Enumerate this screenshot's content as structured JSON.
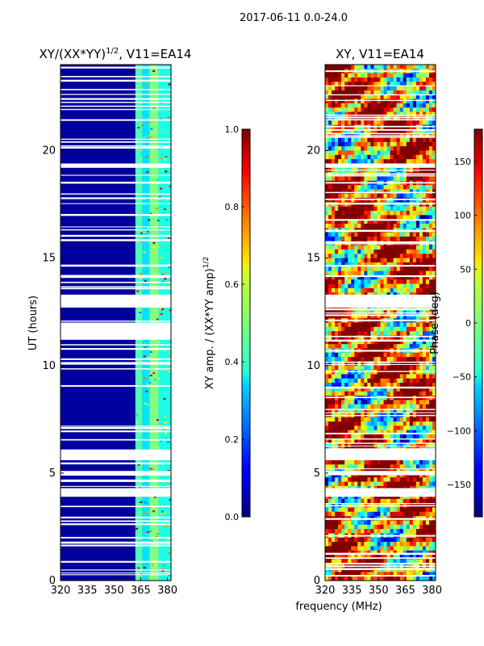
{
  "figure": {
    "suptitle": "2017-06-11 0.0-24.0",
    "xlabel_shared": "frequency (MHz)"
  },
  "chart_data": [
    {
      "type": "heatmap",
      "title_main": "XY/(XX*YY)",
      "title_sup": "1/2",
      "title_tail": ", V11=EA14",
      "ylabel": "UT (hours)",
      "xlim": [
        320,
        382
      ],
      "ylim": [
        0,
        24
      ],
      "xticks": [
        "320",
        "335",
        "350",
        "365",
        "380"
      ],
      "xtick_values": [
        320,
        335,
        350,
        365,
        380
      ],
      "yticks": [
        "0",
        "5",
        "10",
        "15",
        "20"
      ],
      "ytick_values": [
        0,
        5,
        10,
        15,
        20
      ],
      "colorbar": {
        "label_main": "XY amp. / (XX*YY amp)",
        "label_sup": "1/2",
        "range": [
          0.0,
          1.0
        ],
        "ticks": [
          "0.0",
          "0.2",
          "0.4",
          "0.6",
          "0.8",
          "1.0"
        ],
        "tick_values": [
          0.0,
          0.2,
          0.4,
          0.6,
          0.8,
          1.0
        ]
      },
      "flagged_hours": [
        [
          3.9,
          4.3
        ],
        [
          4.9,
          5.1
        ],
        [
          5.6,
          6.1
        ],
        [
          11.2,
          12.0
        ],
        [
          12.7,
          13.3
        ],
        [
          19.2,
          19.4
        ]
      ],
      "band_levels": [
        {
          "from": 320,
          "to": 362,
          "value": 0.04
        },
        {
          "from": 362,
          "to": 366,
          "value": 0.45
        },
        {
          "from": 366,
          "to": 370,
          "value": 0.35
        },
        {
          "from": 370,
          "to": 375,
          "value": 0.5
        },
        {
          "from": 375,
          "to": 382,
          "value": 0.4
        }
      ]
    },
    {
      "type": "heatmap",
      "title_main": "XY, V11=EA14",
      "xlim": [
        320,
        382
      ],
      "ylim": [
        0,
        24
      ],
      "xticks": [
        "320",
        "335",
        "350",
        "365",
        "380"
      ],
      "xtick_values": [
        320,
        335,
        350,
        365,
        380
      ],
      "yticks": [
        "0",
        "5",
        "10",
        "15",
        "20"
      ],
      "ytick_values": [
        0,
        5,
        10,
        15,
        20
      ],
      "colorbar": {
        "label_main": "Phase (deg)",
        "range": [
          -180,
          180
        ],
        "ticks": [
          "150",
          "100",
          "50",
          "0",
          "−50",
          "−100",
          "−150"
        ],
        "tick_values": [
          150,
          100,
          50,
          0,
          -50,
          -100,
          -150
        ]
      },
      "flagged_hours": [
        [
          3.9,
          4.3
        ],
        [
          4.9,
          5.1
        ],
        [
          5.6,
          6.1
        ],
        [
          12.7,
          13.3
        ],
        [
          19.2,
          19.4
        ]
      ]
    }
  ]
}
